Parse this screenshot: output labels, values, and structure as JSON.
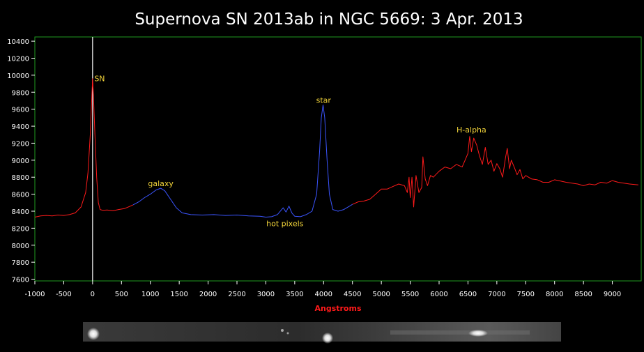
{
  "chart_data": {
    "type": "line",
    "title": "Supernova SN 2013ab in NGC 5669: 3 Apr. 2013",
    "xlabel": "Angstroms",
    "ylabel": "",
    "xlim": [
      -1000,
      9500
    ],
    "ylim": [
      7580,
      10450
    ],
    "x_ticks": [
      -1000,
      -500,
      0,
      500,
      1000,
      1500,
      2000,
      2500,
      3000,
      3500,
      4000,
      4500,
      5000,
      5500,
      6000,
      6500,
      7000,
      7500,
      8000,
      8500,
      9000
    ],
    "y_ticks": [
      7600,
      7800,
      8000,
      8200,
      8400,
      8600,
      8800,
      9000,
      9200,
      9400,
      9600,
      9800,
      10000,
      10200,
      10400
    ],
    "grid": false,
    "frame_color": "#1f9a1f",
    "zero_line_color": "#ffffff",
    "series": [
      {
        "color": "#ff1a1a",
        "points": [
          [
            -1000,
            8330
          ],
          [
            -900,
            8345
          ],
          [
            -800,
            8350
          ],
          [
            -700,
            8345
          ],
          [
            -600,
            8355
          ],
          [
            -500,
            8350
          ],
          [
            -400,
            8360
          ],
          [
            -300,
            8380
          ],
          [
            -200,
            8450
          ],
          [
            -120,
            8620
          ],
          [
            -80,
            8850
          ],
          [
            -40,
            9300
          ],
          [
            -10,
            9800
          ],
          [
            0,
            9960
          ],
          [
            15,
            9750
          ],
          [
            40,
            9300
          ],
          [
            70,
            8800
          ],
          [
            100,
            8500
          ],
          [
            130,
            8420
          ],
          [
            180,
            8410
          ],
          [
            250,
            8415
          ],
          [
            350,
            8405
          ],
          [
            450,
            8420
          ],
          [
            550,
            8430
          ],
          [
            620,
            8450
          ],
          [
            700,
            8475
          ]
        ]
      },
      {
        "color": "#3b55ff",
        "points": [
          [
            700,
            8475
          ],
          [
            800,
            8510
          ],
          [
            900,
            8560
          ],
          [
            1000,
            8600
          ],
          [
            1100,
            8650
          ],
          [
            1180,
            8670
          ],
          [
            1250,
            8640
          ],
          [
            1350,
            8540
          ],
          [
            1450,
            8440
          ],
          [
            1550,
            8380
          ],
          [
            1700,
            8360
          ],
          [
            1900,
            8355
          ],
          [
            2100,
            8360
          ],
          [
            2300,
            8350
          ],
          [
            2500,
            8355
          ],
          [
            2700,
            8345
          ],
          [
            2900,
            8340
          ],
          [
            3000,
            8330
          ],
          [
            3100,
            8335
          ],
          [
            3200,
            8360
          ],
          [
            3300,
            8440
          ],
          [
            3350,
            8390
          ],
          [
            3400,
            8460
          ],
          [
            3450,
            8380
          ],
          [
            3500,
            8340
          ],
          [
            3600,
            8335
          ],
          [
            3700,
            8360
          ],
          [
            3800,
            8400
          ],
          [
            3880,
            8600
          ],
          [
            3930,
            9100
          ],
          [
            3960,
            9500
          ],
          [
            3990,
            9650
          ],
          [
            4020,
            9500
          ],
          [
            4060,
            9000
          ],
          [
            4100,
            8600
          ],
          [
            4160,
            8420
          ],
          [
            4250,
            8400
          ],
          [
            4350,
            8420
          ],
          [
            4450,
            8460
          ],
          [
            4500,
            8480
          ]
        ]
      },
      {
        "color": "#ff1a1a",
        "points": [
          [
            4500,
            8480
          ],
          [
            4600,
            8510
          ],
          [
            4700,
            8520
          ],
          [
            4800,
            8540
          ],
          [
            4900,
            8600
          ],
          [
            5000,
            8660
          ],
          [
            5100,
            8660
          ],
          [
            5200,
            8690
          ],
          [
            5300,
            8720
          ],
          [
            5400,
            8700
          ],
          [
            5450,
            8620
          ],
          [
            5480,
            8800
          ],
          [
            5500,
            8560
          ],
          [
            5530,
            8800
          ],
          [
            5560,
            8450
          ],
          [
            5600,
            8820
          ],
          [
            5650,
            8620
          ],
          [
            5700,
            8680
          ],
          [
            5720,
            9040
          ],
          [
            5760,
            8780
          ],
          [
            5800,
            8700
          ],
          [
            5850,
            8820
          ],
          [
            5900,
            8800
          ],
          [
            6000,
            8870
          ],
          [
            6100,
            8920
          ],
          [
            6200,
            8900
          ],
          [
            6300,
            8950
          ],
          [
            6400,
            8920
          ],
          [
            6450,
            9000
          ],
          [
            6500,
            9080
          ],
          [
            6530,
            9280
          ],
          [
            6560,
            9100
          ],
          [
            6600,
            9260
          ],
          [
            6650,
            9180
          ],
          [
            6700,
            9050
          ],
          [
            6750,
            8950
          ],
          [
            6800,
            9150
          ],
          [
            6850,
            8950
          ],
          [
            6900,
            9000
          ],
          [
            6950,
            8870
          ],
          [
            7000,
            8960
          ],
          [
            7050,
            8900
          ],
          [
            7100,
            8800
          ],
          [
            7150,
            9030
          ],
          [
            7180,
            9140
          ],
          [
            7220,
            8900
          ],
          [
            7250,
            9000
          ],
          [
            7300,
            8920
          ],
          [
            7350,
            8830
          ],
          [
            7400,
            8890
          ],
          [
            7450,
            8780
          ],
          [
            7500,
            8820
          ],
          [
            7600,
            8780
          ],
          [
            7700,
            8770
          ],
          [
            7800,
            8740
          ],
          [
            7900,
            8740
          ],
          [
            8000,
            8770
          ],
          [
            8200,
            8740
          ],
          [
            8400,
            8720
          ],
          [
            8500,
            8700
          ],
          [
            8600,
            8720
          ],
          [
            8700,
            8710
          ],
          [
            8800,
            8740
          ],
          [
            8900,
            8730
          ],
          [
            9000,
            8760
          ],
          [
            9100,
            8740
          ],
          [
            9200,
            8730
          ],
          [
            9300,
            8720
          ],
          [
            9450,
            8710
          ]
        ]
      }
    ],
    "annotations": [
      {
        "text": "SN",
        "x": 30,
        "y": 9930
      },
      {
        "text": "galaxy",
        "x": 1180,
        "y": 8695
      },
      {
        "text": "star",
        "x": 4000,
        "y": 9675
      },
      {
        "text": "hot pixels",
        "x": 3330,
        "y": 8225
      },
      {
        "text": "H-alpha",
        "x": 6560,
        "y": 9325
      }
    ]
  }
}
